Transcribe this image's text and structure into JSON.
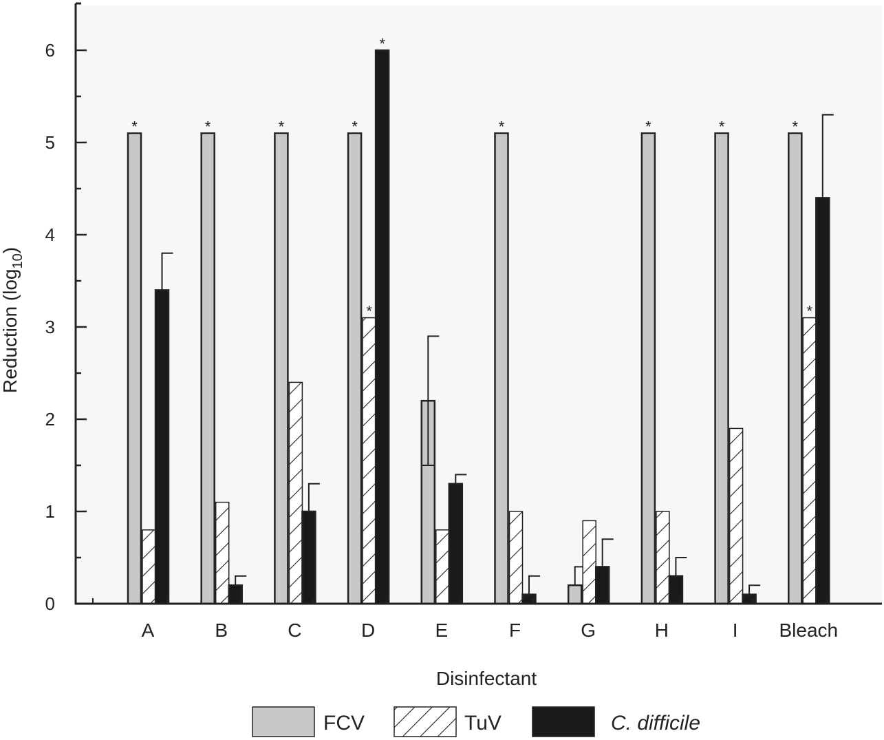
{
  "chart_data": {
    "type": "bar",
    "title": "",
    "xlabel": "Disinfectant",
    "ylabel": "Reduction (log",
    "ylabel_subscript": "10",
    "ylabel_close": ")",
    "ylim": [
      0,
      6.5
    ],
    "yticks": [
      0,
      1,
      2,
      3,
      4,
      5,
      6
    ],
    "ytick_labels": [
      "0",
      "1",
      "2",
      "3",
      "4",
      "5",
      "6"
    ],
    "grid": false,
    "legend_position": "bottom",
    "categories": [
      "A",
      "B",
      "C",
      "D",
      "E",
      "F",
      "G",
      "H",
      "I",
      "Bleach"
    ],
    "series": [
      {
        "name": "FCV",
        "style": "gray",
        "values": [
          5.1,
          5.1,
          5.1,
          5.1,
          2.2,
          5.1,
          0.2,
          5.1,
          5.1,
          5.1
        ],
        "error_high": [
          null,
          null,
          null,
          null,
          2.9,
          null,
          0.4,
          null,
          null,
          null
        ],
        "error_low": [
          null,
          null,
          null,
          null,
          1.5,
          null,
          null,
          null,
          null,
          null
        ],
        "significant": [
          true,
          true,
          true,
          true,
          false,
          true,
          false,
          true,
          true,
          true
        ]
      },
      {
        "name": "TuV",
        "style": "hatched",
        "values": [
          0.8,
          1.1,
          2.4,
          3.1,
          0.8,
          1.0,
          0.9,
          1.0,
          1.9,
          3.1
        ],
        "error_high": [
          null,
          null,
          null,
          null,
          null,
          null,
          null,
          null,
          null,
          null
        ],
        "error_low": [
          null,
          null,
          null,
          null,
          null,
          null,
          null,
          null,
          null,
          null
        ],
        "significant": [
          false,
          false,
          false,
          true,
          false,
          false,
          false,
          false,
          false,
          true
        ]
      },
      {
        "name": "C. difficile",
        "style": "black",
        "italic": true,
        "values": [
          3.4,
          0.2,
          1.0,
          6.0,
          1.3,
          0.1,
          0.4,
          0.3,
          0.1,
          4.4
        ],
        "error_high": [
          3.8,
          0.3,
          1.3,
          null,
          1.4,
          0.3,
          0.7,
          0.5,
          0.2,
          5.3
        ],
        "error_low": [
          null,
          null,
          null,
          null,
          null,
          null,
          null,
          null,
          null,
          null
        ],
        "significant": [
          false,
          false,
          false,
          true,
          false,
          false,
          false,
          false,
          false,
          false
        ]
      }
    ],
    "annotation_symbol": "*",
    "colors": {
      "FCV": "#c8c8c8",
      "TuV": "#ffffff",
      "C. difficile": "#1a1a1a",
      "outline": "#222222",
      "plot_background": "#f7f7f7"
    }
  }
}
